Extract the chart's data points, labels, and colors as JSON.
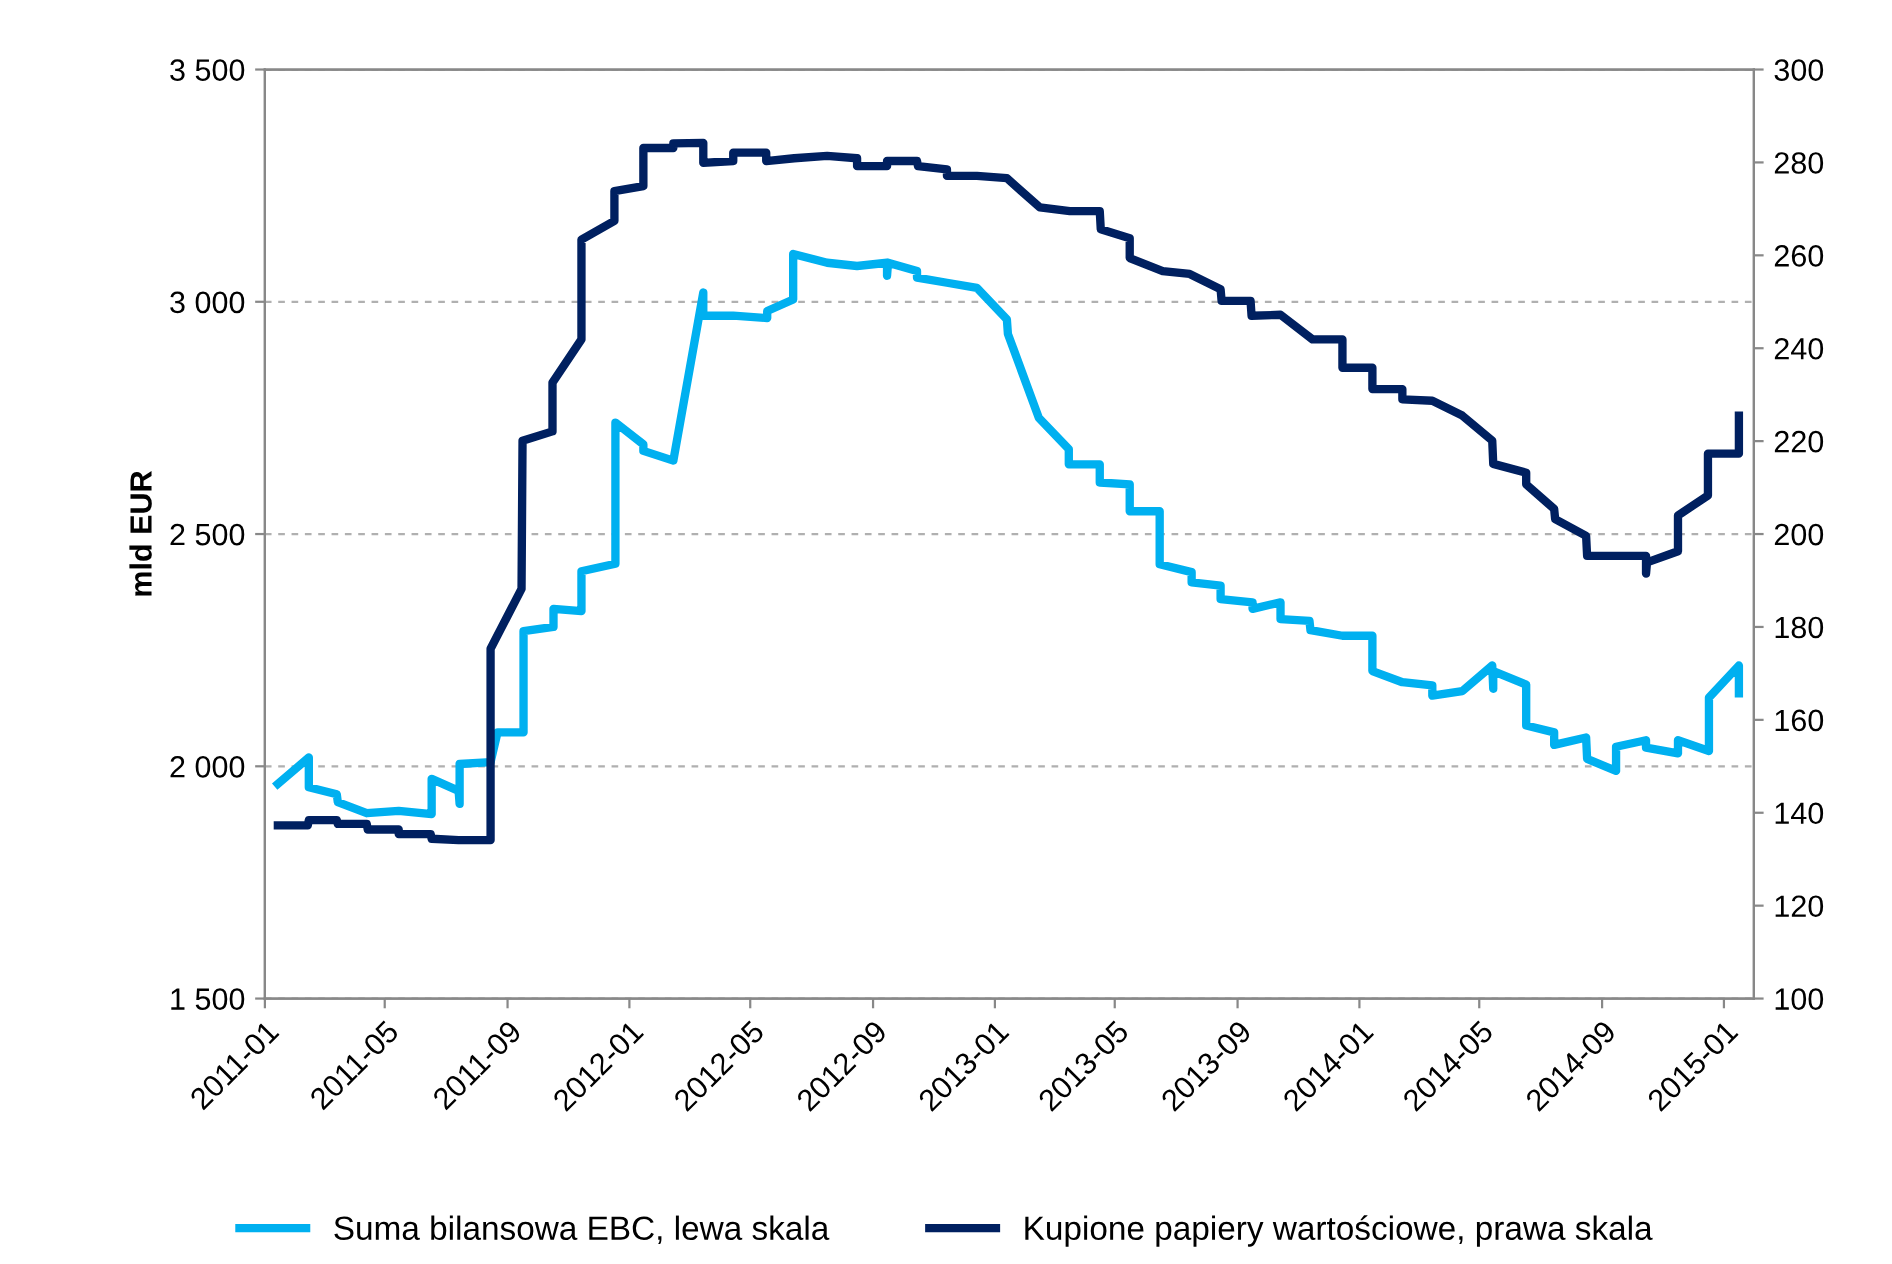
{
  "chart_data": {
    "type": "line",
    "ylabel": "mld EUR",
    "grid": "y",
    "legend": "bottom",
    "line_style": "solid",
    "marker": "none",
    "xlim": [
      "2011-01-01",
      "2015-01-31"
    ],
    "xticks": [
      "2011-01",
      "2011-05",
      "2011-09",
      "2012-01",
      "2012-05",
      "2012-09",
      "2013-01",
      "2013-05",
      "2013-09",
      "2014-01",
      "2014-05",
      "2014-09",
      "2015-01"
    ],
    "ylim": [
      1500,
      3500
    ],
    "yticks": [
      {
        "value": 1500,
        "label": "1 500"
      },
      {
        "value": 2000,
        "label": "2 000"
      },
      {
        "value": 2500,
        "label": "2 500"
      },
      {
        "value": 3000,
        "label": "3 000"
      },
      {
        "value": 3500,
        "label": "3 500"
      }
    ],
    "y2lim": [
      100,
      300
    ],
    "y2ticks": [
      100,
      120,
      140,
      160,
      180,
      200,
      220,
      240,
      260,
      280,
      300
    ],
    "series": [
      {
        "name": "Suma bilansowa EBC, lewa skala",
        "color": "#00b0f0",
        "x": [
          "2011-01-14",
          "2011-02-14",
          "2011-02-14",
          "2011-03-14",
          "2011-03-15",
          "2011-04-13",
          "2011-05-15",
          "2011-06-17",
          "2011-06-17",
          "2011-07-14",
          "2011-07-15",
          "2011-07-15",
          "2011-08-15",
          "2011-08-22",
          "2011-09-17",
          "2011-09-17",
          "2011-10-17",
          "2011-10-17",
          "2011-11-14",
          "2011-11-14",
          "2011-12-18",
          "2011-12-18",
          "2012-01-15",
          "2012-01-15",
          "2012-02-14",
          "2012-03-15",
          "2012-03-15",
          "2012-04-14",
          "2012-05-18",
          "2012-05-18",
          "2012-06-13",
          "2012-06-13",
          "2012-07-17",
          "2012-08-16",
          "2012-09-15",
          "2012-09-15",
          "2012-09-16",
          "2012-10-15",
          "2012-10-15",
          "2012-11-14",
          "2012-12-14",
          "2013-01-13",
          "2013-01-14",
          "2013-02-14",
          "2013-03-16",
          "2013-03-16",
          "2013-04-16",
          "2013-04-16",
          "2013-05-16",
          "2013-05-16",
          "2013-06-15",
          "2013-06-15",
          "2013-07-17",
          "2013-07-17",
          "2013-08-15",
          "2013-08-15",
          "2013-09-16",
          "2013-09-16",
          "2013-10-14",
          "2013-10-14",
          "2013-11-12",
          "2013-11-13",
          "2013-12-15",
          "2014-01-14",
          "2014-01-14",
          "2014-02-13",
          "2014-03-15",
          "2014-03-15",
          "2014-04-14",
          "2014-05-14",
          "2014-05-15",
          "2014-05-15",
          "2014-06-17",
          "2014-06-17",
          "2014-07-15",
          "2014-07-15",
          "2014-08-16",
          "2014-08-17",
          "2014-09-15",
          "2014-09-15",
          "2014-10-15",
          "2014-10-15",
          "2014-11-16",
          "2014-11-16",
          "2014-12-17",
          "2014-12-17",
          "2015-01-16",
          "2015-01-16"
        ],
        "values": [
          1962,
          2019,
          1955,
          1940,
          1923,
          1899,
          1904,
          1897,
          1973,
          1947,
          1919,
          2005,
          2009,
          2073,
          2073,
          2291,
          2300,
          2339,
          2334,
          2420,
          2436,
          2740,
          2693,
          2679,
          2658,
          3020,
          2970,
          2970,
          2965,
          2980,
          3005,
          3103,
          3084,
          3077,
          3084,
          3056,
          3084,
          3066,
          3052,
          3041,
          3030,
          2962,
          2931,
          2750,
          2683,
          2650,
          2650,
          2611,
          2607,
          2549,
          2549,
          2435,
          2418,
          2396,
          2389,
          2360,
          2353,
          2339,
          2353,
          2317,
          2313,
          2293,
          2281,
          2281,
          2205,
          2181,
          2174,
          2152,
          2162,
          2217,
          2167,
          2205,
          2176,
          2088,
          2073,
          2046,
          2062,
          2016,
          1990,
          2042,
          2056,
          2040,
          2028,
          2056,
          2033,
          2148,
          2217,
          2157
        ]
      },
      {
        "name": "Kupione papiery wartościowe, prawa skala",
        "color": "#002060",
        "axis": "y2",
        "x": [
          "2011-01-14",
          "2011-02-13",
          "2011-02-14",
          "2011-03-14",
          "2011-03-15",
          "2011-04-13",
          "2011-04-14",
          "2011-05-15",
          "2011-05-15",
          "2011-06-16",
          "2011-06-17",
          "2011-07-14",
          "2011-08-15",
          "2011-08-15",
          "2011-09-15",
          "2011-09-16",
          "2011-10-16",
          "2011-10-16",
          "2011-11-14",
          "2011-11-14",
          "2011-12-17",
          "2011-12-17",
          "2012-01-15",
          "2012-01-15",
          "2012-02-14",
          "2012-02-14",
          "2012-03-15",
          "2012-03-15",
          "2012-04-14",
          "2012-04-14",
          "2012-05-17",
          "2012-05-17",
          "2012-06-14",
          "2012-07-17",
          "2012-08-16",
          "2012-08-16",
          "2012-09-15",
          "2012-09-15",
          "2012-10-15",
          "2012-10-16",
          "2012-11-14",
          "2012-11-14",
          "2012-12-14",
          "2013-01-13",
          "2013-02-15",
          "2013-03-17",
          "2013-04-16",
          "2013-04-17",
          "2013-05-16",
          "2013-05-16",
          "2013-06-18",
          "2013-07-15",
          "2013-08-15",
          "2013-08-16",
          "2013-09-14",
          "2013-09-15",
          "2013-10-14",
          "2013-11-15",
          "2013-12-15",
          "2013-12-15",
          "2014-01-14",
          "2014-01-14",
          "2014-02-13",
          "2014-02-13",
          "2014-03-15",
          "2014-04-14",
          "2014-05-14",
          "2014-05-15",
          "2014-06-17",
          "2014-06-17",
          "2014-07-15",
          "2014-07-16",
          "2014-08-16",
          "2014-08-17",
          "2014-10-15",
          "2014-10-15",
          "2014-10-16",
          "2014-11-16",
          "2014-11-16",
          "2014-12-16",
          "2014-12-16",
          "2015-01-16",
          "2015-01-16"
        ],
        "values": [
          137.3,
          137.3,
          138.4,
          138.4,
          137.6,
          137.6,
          136.4,
          136.4,
          135.4,
          135.4,
          134.4,
          134.1,
          134.1,
          175.3,
          188.2,
          220.1,
          222.1,
          232.6,
          241.9,
          263.4,
          267.4,
          273.8,
          274.9,
          283.1,
          283.1,
          284.1,
          284.2,
          279.9,
          280.3,
          282.1,
          282.1,
          280.3,
          280.9,
          281.4,
          280.9,
          279.2,
          279.2,
          280.3,
          280.3,
          279.2,
          278.5,
          277.1,
          277.1,
          276.6,
          270.3,
          269.5,
          269.5,
          265.6,
          263.7,
          259.4,
          256.6,
          256.0,
          252.7,
          250.2,
          250.2,
          247.0,
          247.2,
          241.9,
          241.9,
          235.8,
          235.8,
          231.2,
          231.2,
          229.0,
          228.7,
          225.5,
          220.1,
          215.1,
          213.2,
          210.7,
          205.4,
          203.2,
          199.6,
          195.3,
          195.3,
          191.5,
          193.9,
          196.3,
          204.0,
          208.3,
          217.3,
          217.3,
          225.5
        ]
      }
    ]
  }
}
